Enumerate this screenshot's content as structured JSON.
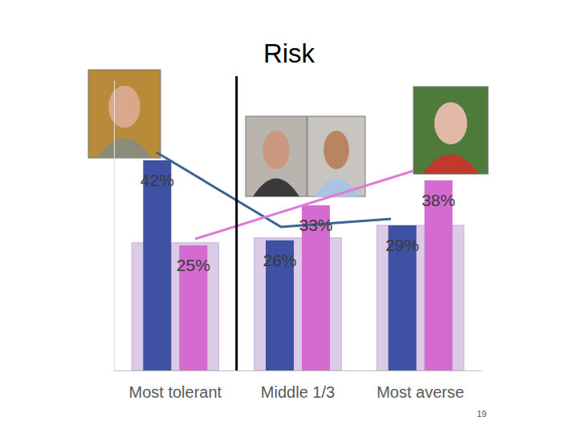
{
  "chart_data": {
    "type": "bar",
    "title": "Risk",
    "categories": [
      "Most tolerant",
      "Middle 1/3",
      "Most averse"
    ],
    "series": [
      {
        "color": "#dccbe7",
        "values": [
          25.5,
          26.5,
          29
        ]
      },
      {
        "color": "#3f51a3",
        "values": [
          42,
          26,
          29
        ],
        "value_labels": [
          "42%",
          "26%",
          "29%"
        ],
        "data_labels": true
      },
      {
        "color": "#d36bd0",
        "values": [
          25,
          33,
          38
        ],
        "value_labels": [
          "25%",
          "33%",
          "38%"
        ],
        "data_labels": true
      }
    ],
    "ylim": [
      0,
      58
    ],
    "tick_labels": "x",
    "annotations": [
      "19"
    ]
  }
}
